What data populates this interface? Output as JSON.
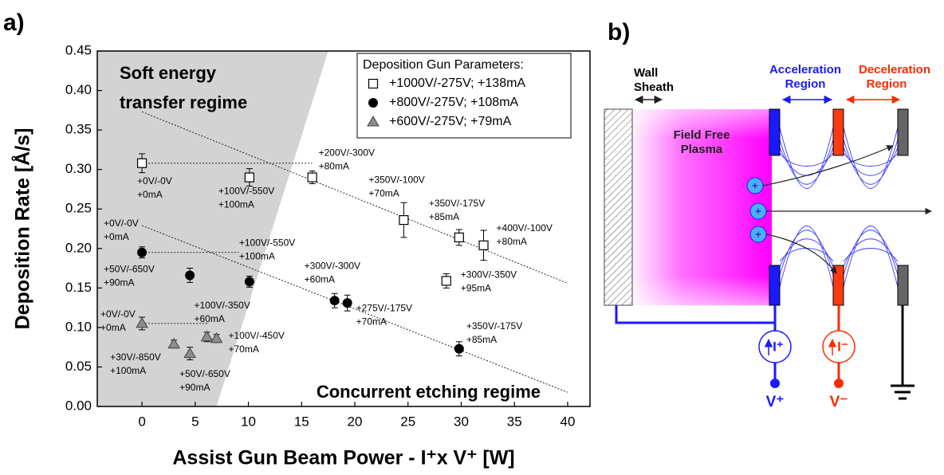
{
  "chart_data": {
    "type": "scatter",
    "panel_label": "a)",
    "x_label": "Assist Gun Beam Power - I⁺x V⁺ [W]",
    "y_label": "Deposition Rate [Å/s]",
    "xlim": [
      -4.2,
      42.1
    ],
    "ylim": [
      0,
      0.45
    ],
    "xticks": [
      0,
      5,
      10,
      15,
      20,
      25,
      30,
      35,
      40
    ],
    "yticks": [
      {
        "value": 0,
        "label": "0.00"
      },
      0.05,
      {
        "value": 0.1,
        "label": "0.10"
      },
      0.15,
      {
        "value": 0.2,
        "label": "0.20"
      },
      0.25,
      {
        "value": 0.3,
        "label": "0.30"
      },
      0.35,
      {
        "value": 0.4,
        "label": "0.40"
      },
      0.45
    ],
    "legend_title": "Deposition Gun Parameters:",
    "legend_position": "upper right",
    "shaded_region": {
      "x": [
        7,
        17.5
      ],
      "y": [
        0,
        0.45
      ],
      "color": "#d3d3d3"
    },
    "region_labels": {
      "soft": [
        "Soft energy",
        "transfer regime"
      ],
      "etching": "Concurrent etching regime"
    },
    "dashed_lines": [
      {
        "x": [
          0,
          40
        ],
        "y": [
          0.373,
          0.156
        ]
      },
      {
        "x": [
          0,
          40
        ],
        "y": [
          0.229,
          0.018
        ]
      },
      {
        "x": [
          0,
          16
        ],
        "y": [
          0.308,
          0.308
        ]
      },
      {
        "x": [
          0,
          9.1
        ],
        "y": [
          0.195,
          0.195
        ]
      },
      {
        "x": [
          0,
          6.3
        ],
        "y": [
          0.105,
          0.105
        ]
      }
    ],
    "series": [
      {
        "name": "+1000V/-275V; +138mA",
        "marker": "square",
        "color": "#ffffff",
        "x": [
          0,
          10.1,
          16,
          24.6,
          29.8,
          32.1,
          28.6
        ],
        "y": [
          0.308,
          0.29,
          0.29,
          0.236,
          0.214,
          0.204,
          0.159
        ],
        "errors": [
          0.012,
          0.011,
          0.008,
          0.022,
          0.01,
          0.019,
          0.009
        ],
        "point_labels": [
          [
            "+0V/-0V",
            "+0mA"
          ],
          [
            "+100V/-550V",
            "+100mA"
          ],
          [
            "+200V/-300V",
            "+80mA"
          ],
          [
            "+350V/-100V",
            "+70mA"
          ],
          [
            "+350V/-175V",
            "+85mA"
          ],
          [
            "+400V/-100V",
            "+80mA"
          ],
          [
            "+300V/-350V",
            "+95mA"
          ]
        ]
      },
      {
        "name": "+800V/-275V; +108mA",
        "marker": "circle",
        "color": "#000000",
        "x": [
          0,
          4.5,
          10.1,
          18.1,
          19.3,
          29.8
        ],
        "y": [
          0.195,
          0.166,
          0.158,
          0.134,
          0.131,
          0.073
        ],
        "errors": [
          0.007,
          0.009,
          0.007,
          0.009,
          0.01,
          0.009
        ],
        "point_labels": [
          [
            "+0V/-0V",
            "+0mA"
          ],
          [
            "+50V/-650V",
            "+90mA"
          ],
          [
            "+100V/-550V",
            "+100mA"
          ],
          [
            "+300V/-300V",
            "+60mA"
          ],
          [
            "+275V/-175V",
            "+70mA"
          ],
          [
            "+350V/-175V",
            "+85mA"
          ]
        ]
      },
      {
        "name": "+600V/-275V;   +79mA",
        "marker": "triangle",
        "color": "#8c8c8c",
        "x": [
          0,
          3.0,
          4.5,
          6.1,
          7.0
        ],
        "y": [
          0.105,
          0.079,
          0.067,
          0.088,
          0.086
        ],
        "errors": [
          0.008,
          0.005,
          0.008,
          0.006,
          0.005
        ],
        "point_labels": [
          [
            "+0V/-0V",
            "+0mA"
          ],
          [
            "+30V/-850V",
            "+100mA"
          ],
          [
            "+50V/-650V",
            "+90mA"
          ],
          [
            "+100V/-350V",
            "+60mA"
          ],
          [
            "+100V/-450V",
            "+70mA"
          ]
        ]
      }
    ]
  },
  "diagram": {
    "label": "b)",
    "wall_sheath": [
      "Wall",
      "Sheath"
    ],
    "acceleration": [
      "Acceleration",
      "Region"
    ],
    "deceleration": [
      "Deceleration",
      "Region"
    ],
    "plasma": [
      "Field Free",
      "Plasma"
    ],
    "ions": [
      "+",
      "+",
      "+"
    ],
    "current_pos": "I⁺",
    "current_neg": "I⁻",
    "voltage_pos": "V⁺",
    "voltage_neg": "V⁻"
  }
}
